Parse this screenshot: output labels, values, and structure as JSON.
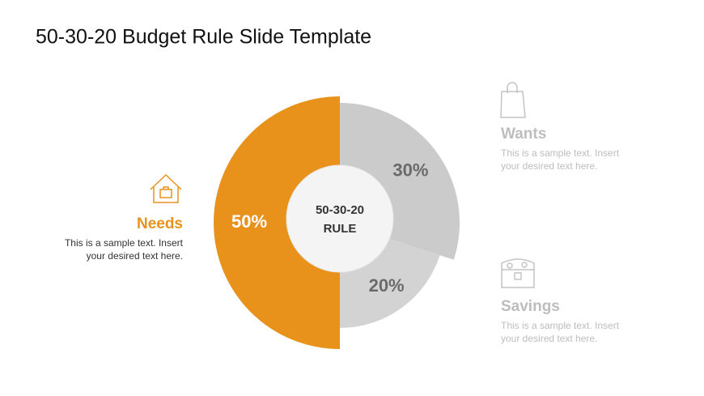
{
  "chart_data": {
    "type": "pie",
    "title": "50-30-20 Budget Rule Slide Template",
    "center_label": [
      "50-30-20",
      "RULE"
    ],
    "categories": [
      "Needs",
      "Wants",
      "Savings"
    ],
    "values": [
      50,
      30,
      20
    ],
    "value_labels": [
      "50%",
      "30%",
      "20%"
    ],
    "colors": [
      "#e8921c",
      "#cbcbcb",
      "#d3d3d3"
    ],
    "descriptions": [
      [
        "This is a sample text. Insert",
        "your desired text here."
      ],
      [
        "This is a sample text. Insert",
        "your desired text here."
      ],
      [
        "This is a sample text. Insert",
        "your desired text here."
      ]
    ]
  }
}
